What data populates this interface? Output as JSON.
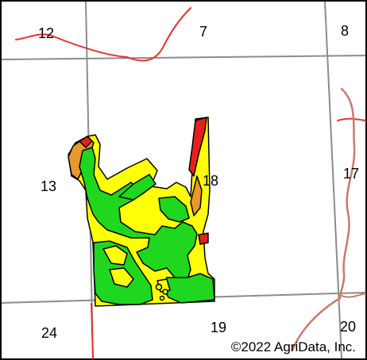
{
  "map": {
    "sections": [
      {
        "id": "s12",
        "label": "12"
      },
      {
        "id": "s7",
        "label": "7"
      },
      {
        "id": "s8",
        "label": "8"
      },
      {
        "id": "s13",
        "label": "13"
      },
      {
        "id": "s18",
        "label": "18"
      },
      {
        "id": "s17",
        "label": "17"
      },
      {
        "id": "s24",
        "label": "24"
      },
      {
        "id": "s19",
        "label": "19"
      },
      {
        "id": "s20",
        "label": "20"
      }
    ],
    "copyright": "©2022 AgriData, Inc.",
    "colors": {
      "section_line": "#8c8c8c",
      "road_red": "#e8322d",
      "road_brown": "#c77a6d",
      "zone_green": "#1ed71e",
      "zone_yellow": "#ffff0a",
      "zone_orange": "#e79a2a",
      "zone_red": "#e4201c",
      "outline": "#000000"
    }
  }
}
